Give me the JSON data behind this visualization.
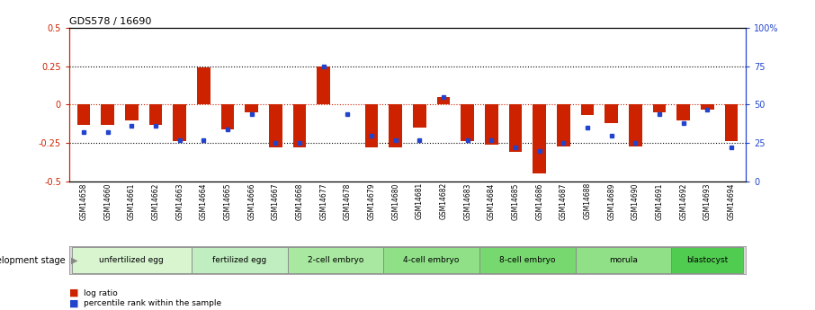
{
  "title": "GDS578 / 16690",
  "samples": [
    "GSM14658",
    "GSM14660",
    "GSM14661",
    "GSM14662",
    "GSM14663",
    "GSM14664",
    "GSM14665",
    "GSM14666",
    "GSM14667",
    "GSM14668",
    "GSM14677",
    "GSM14678",
    "GSM14679",
    "GSM14680",
    "GSM14681",
    "GSM14682",
    "GSM14683",
    "GSM14684",
    "GSM14685",
    "GSM14686",
    "GSM14687",
    "GSM14688",
    "GSM14689",
    "GSM14690",
    "GSM14691",
    "GSM14692",
    "GSM14693",
    "GSM14694"
  ],
  "log_ratio": [
    -0.13,
    -0.13,
    -0.1,
    -0.13,
    -0.24,
    0.24,
    -0.16,
    -0.05,
    -0.28,
    -0.28,
    0.25,
    0.0,
    -0.28,
    -0.28,
    -0.15,
    0.05,
    -0.24,
    -0.26,
    -0.31,
    -0.45,
    -0.27,
    -0.07,
    -0.12,
    -0.27,
    -0.05,
    -0.1,
    -0.03,
    -0.24
  ],
  "percentile_rank": [
    32,
    32,
    36,
    36,
    27,
    27,
    34,
    44,
    25,
    25,
    75,
    44,
    30,
    27,
    27,
    55,
    27,
    27,
    22,
    20,
    25,
    35,
    30,
    25,
    44,
    38,
    47,
    22
  ],
  "stage_groups": [
    {
      "label": "unfertilized egg",
      "start": 0,
      "end": 5
    },
    {
      "label": "fertilized egg",
      "start": 5,
      "end": 9
    },
    {
      "label": "2-cell embryo",
      "start": 9,
      "end": 13
    },
    {
      "label": "4-cell embryo",
      "start": 13,
      "end": 17
    },
    {
      "label": "8-cell embryo",
      "start": 17,
      "end": 21
    },
    {
      "label": "morula",
      "start": 21,
      "end": 25
    },
    {
      "label": "blastocyst",
      "start": 25,
      "end": 28
    }
  ],
  "stage_colors": [
    "#d8f5d0",
    "#c0eec0",
    "#a8e8a0",
    "#90e088",
    "#78d870",
    "#90e088",
    "#50cc50"
  ],
  "bar_color": "#cc2200",
  "dot_color": "#2244cc",
  "ylim": [
    -0.5,
    0.5
  ],
  "yticks": [
    -0.5,
    -0.25,
    0.0,
    0.25,
    0.5
  ],
  "ytick_labels": [
    "-0.5",
    "-0.25",
    "0",
    "0.25",
    "0.5"
  ],
  "y2ticks": [
    0,
    25,
    50,
    75,
    100
  ],
  "y2tick_labels": [
    "0",
    "25",
    "50",
    "75",
    "100%"
  ],
  "dotted_lines_black": [
    -0.25,
    0.25
  ],
  "dotted_line_red": 0.0,
  "left_axis_color": "#cc2200",
  "right_axis_color": "#2244cc",
  "bg_color": "#ffffff"
}
